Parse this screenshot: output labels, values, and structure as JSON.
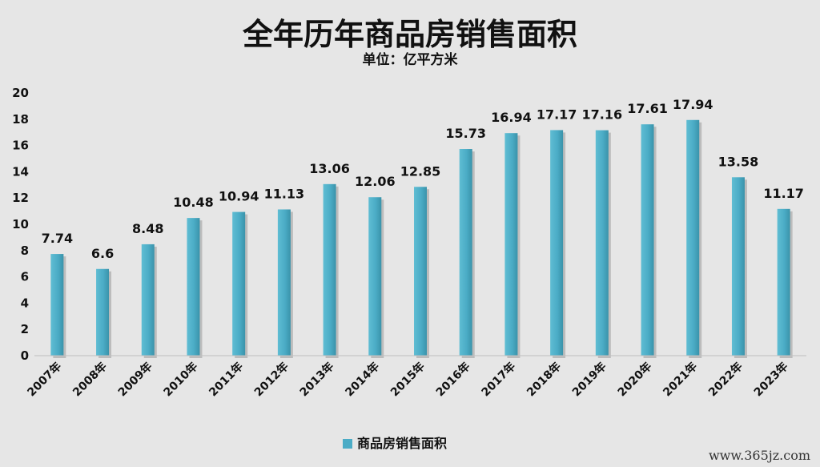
{
  "chart_data": {
    "type": "bar",
    "title": "全年历年商品房销售面积",
    "subtitle": "单位：亿平方米",
    "categories": [
      "2007年",
      "2008年",
      "2009年",
      "2010年",
      "2011年",
      "2012年",
      "2013年",
      "2014年",
      "2015年",
      "2016年",
      "2017年",
      "2018年",
      "2019年",
      "2020年",
      "2021年",
      "2022年",
      "2023年"
    ],
    "series": [
      {
        "name": "商品房销售面积",
        "values": [
          7.74,
          6.6,
          8.48,
          10.48,
          10.94,
          11.13,
          13.06,
          12.06,
          12.85,
          15.73,
          16.94,
          17.17,
          17.16,
          17.61,
          17.94,
          13.58,
          11.17
        ],
        "value_labels": [
          "7.74",
          "6.6",
          "8.48",
          "10.48",
          "10.94",
          "11.13",
          "13.06",
          "12.06",
          "12.85",
          "15.73",
          "16.94",
          "17.17",
          "17.16",
          "17.61",
          "17.94",
          "13.58",
          "11.17"
        ],
        "color": "#4bacc6"
      }
    ],
    "yticks": [
      "0",
      "2",
      "4",
      "6",
      "8",
      "10",
      "12",
      "14",
      "16",
      "18",
      "20"
    ],
    "ylim": [
      0,
      20
    ],
    "grid": false,
    "legend": "bottom-center"
  },
  "watermark": "www.365jz.com",
  "colors": {
    "background": "#e6e6e6",
    "bar": "#4bacc6"
  }
}
